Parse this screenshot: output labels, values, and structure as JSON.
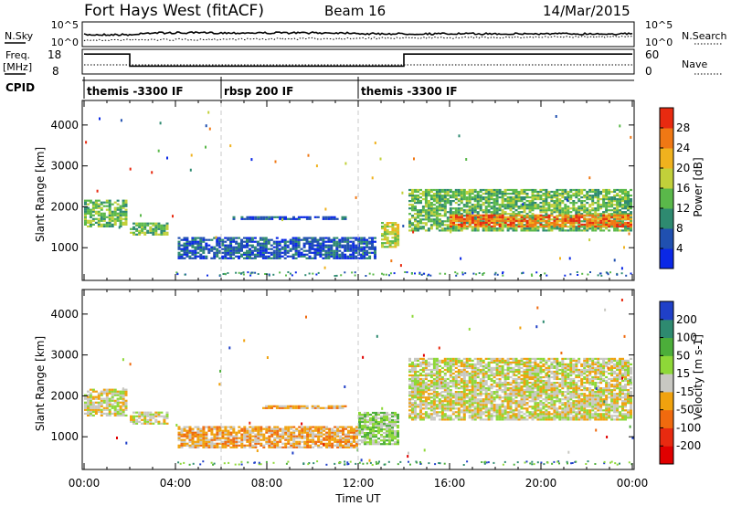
{
  "header": {
    "radar": "Fort Hays West (fitACF)",
    "beam": "Beam 16",
    "date": "14/Mar/2015"
  },
  "top_panel": {
    "nsky_label": "N.Sky",
    "nsearch_label": "N.Search",
    "freq_label_1": "Freq.",
    "freq_label_2": "[MHz]",
    "nave_label": "Nave",
    "cpid_label": "CPID",
    "left_ticks_count": [
      "10^5",
      "10^0"
    ],
    "right_ticks_count": [
      "10^5",
      "10^0"
    ],
    "left_ticks_freq": [
      "18",
      "8"
    ],
    "right_ticks_nave": [
      "60",
      "0"
    ]
  },
  "chart_data": [
    {
      "type": "table",
      "name": "cpid",
      "segments": [
        {
          "label": "themis -3300 IF",
          "start_h": 0,
          "end_h": 6
        },
        {
          "label": "rbsp 200 IF",
          "start_h": 6,
          "end_h": 12
        },
        {
          "label": "themis -3300 IF",
          "start_h": 12,
          "end_h": 24
        }
      ],
      "freq_mhz": [
        {
          "start_h": 0,
          "end_h": 2,
          "value": 17
        },
        {
          "start_h": 2,
          "end_h": 14,
          "value": 11
        },
        {
          "start_h": 14,
          "end_h": 24,
          "value": 17
        }
      ]
    },
    {
      "type": "heatmap",
      "name": "power",
      "ylabel": "Slant Range [km]",
      "yticks": [
        "1000",
        "2000",
        "3000",
        "4000"
      ],
      "ylim": [
        200,
        4600
      ],
      "xlim": [
        0,
        24
      ],
      "colorbar": {
        "label": "Power [dB]",
        "ticks": [
          "4",
          "8",
          "12",
          "16",
          "20",
          "24",
          "28"
        ],
        "colors": [
          "#0a28e6",
          "#2050b0",
          "#2e8a70",
          "#5ab84a",
          "#c2d03a",
          "#f0b21e",
          "#f07814",
          "#e82a10"
        ],
        "range": [
          0,
          32
        ]
      },
      "patches": [
        {
          "x0": 0.0,
          "x1": 1.9,
          "ylo": 1500,
          "yhi": 2150,
          "level": 3
        },
        {
          "x0": 2.0,
          "x1": 3.7,
          "ylo": 1300,
          "yhi": 1600,
          "level": 3
        },
        {
          "x0": 4.1,
          "x1": 12.8,
          "ylo": 720,
          "yhi": 1250,
          "level": 1
        },
        {
          "x0": 6.5,
          "x1": 11.5,
          "ylo": 1680,
          "yhi": 1770,
          "level": 1
        },
        {
          "x0": 13.0,
          "x1": 13.8,
          "ylo": 1000,
          "yhi": 1600,
          "level": 4
        },
        {
          "x0": 14.2,
          "x1": 24.0,
          "ylo": 1400,
          "yhi": 2400,
          "level": 3
        },
        {
          "x0": 16.0,
          "x1": 24.0,
          "ylo": 1500,
          "yhi": 1800,
          "level": 6
        }
      ]
    },
    {
      "type": "heatmap",
      "name": "velocity",
      "ylabel": "Slant Range [km]",
      "xlabel": "Time UT",
      "yticks": [
        "1000",
        "2000",
        "3000",
        "4000"
      ],
      "ylim": [
        200,
        4600
      ],
      "xlim": [
        0,
        24
      ],
      "xticks": [
        "00:00",
        "04:00",
        "08:00",
        "12:00",
        "16:00",
        "20:00",
        "00:00"
      ],
      "colorbar": {
        "label": "Velocity [m s-1]",
        "ticks": [
          "200",
          "100",
          "50",
          "15",
          "-15",
          "-50",
          "-100",
          "-200"
        ],
        "colors": [
          "#2040c8",
          "#2e8a70",
          "#4cae3a",
          "#8ed838",
          "#c8c8c2",
          "#f0a20e",
          "#f06a0e",
          "#e82a10",
          "#e00000"
        ],
        "range": [
          -250,
          250
        ]
      },
      "patches": [
        {
          "x0": 0.0,
          "x1": 1.9,
          "ylo": 1500,
          "yhi": 2150,
          "level": 4
        },
        {
          "x0": 2.0,
          "x1": 3.7,
          "ylo": 1300,
          "yhi": 1600,
          "level": 4
        },
        {
          "x0": 4.1,
          "x1": 12.0,
          "ylo": 720,
          "yhi": 1250,
          "level": 5
        },
        {
          "x0": 7.8,
          "x1": 11.5,
          "ylo": 1680,
          "yhi": 1770,
          "level": 5
        },
        {
          "x0": 12.0,
          "x1": 13.8,
          "ylo": 800,
          "yhi": 1600,
          "level": 3
        },
        {
          "x0": 14.2,
          "x1": 24.0,
          "ylo": 1400,
          "yhi": 2900,
          "level": 4
        }
      ]
    }
  ]
}
